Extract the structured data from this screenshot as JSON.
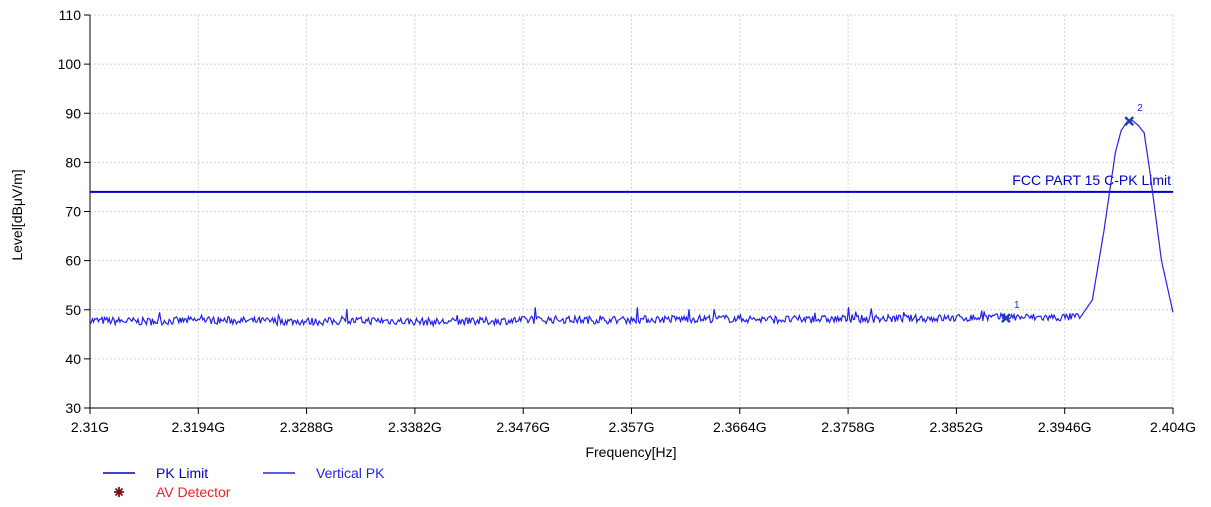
{
  "chart_data": {
    "type": "line",
    "xlabel": "Frequency[Hz]",
    "ylabel": "Level[dBμV/m]",
    "xlim": [
      2.31,
      2.404
    ],
    "ylim": [
      30,
      110
    ],
    "x_unit": "GHz",
    "y_ticks": [
      30,
      40,
      50,
      60,
      70,
      80,
      90,
      100,
      110
    ],
    "x_ticks": [
      2.31,
      2.3194,
      2.3288,
      2.3382,
      2.3476,
      2.357,
      2.3664,
      2.3758,
      2.3852,
      2.3946,
      2.404
    ],
    "x_tick_labels": [
      "2.31G",
      "2.3194G",
      "2.3288G",
      "2.3382G",
      "2.3476G",
      "2.357G",
      "2.3664G",
      "2.3758G",
      "2.3852G",
      "2.3946G",
      "2.404G"
    ],
    "grid": true,
    "limit_line": {
      "name": "FCC PART 15 C-PK Limit",
      "value": 74,
      "color": "#0000cc"
    },
    "series": [
      {
        "name": "Vertical PK",
        "color": "#2222ee",
        "x": [
          2.31,
          2.315,
          2.32,
          2.325,
          2.33,
          2.335,
          2.34,
          2.345,
          2.35,
          2.355,
          2.36,
          2.365,
          2.37,
          2.375,
          2.38,
          2.385,
          2.39,
          2.394,
          2.396,
          2.397,
          2.398,
          2.399,
          2.3995,
          2.4,
          2.4005,
          2.401,
          2.4015,
          2.402,
          2.403,
          2.404
        ],
        "y": [
          47.8,
          47.6,
          47.9,
          47.7,
          47.6,
          47.8,
          47.5,
          47.7,
          48.0,
          47.9,
          48.1,
          48.2,
          48.0,
          48.1,
          48.2,
          48.3,
          48.5,
          48.4,
          48.6,
          52.0,
          66.0,
          82.0,
          86.5,
          88.2,
          88.5,
          87.5,
          86.0,
          78.0,
          60.0,
          49.5
        ]
      }
    ],
    "markers": [
      {
        "label": "1",
        "x": 2.3895,
        "y": 48.3
      },
      {
        "label": "2",
        "x": 2.4002,
        "y": 88.4
      }
    ],
    "legend": {
      "placement": "bottom-left",
      "items": [
        {
          "label": "PK Limit",
          "color": "#0000cc",
          "symbol": "line"
        },
        {
          "label": "Vertical PK",
          "color": "#2222ee",
          "symbol": "line"
        },
        {
          "label": "AV Detector",
          "color": "#ee2222",
          "symbol": "star",
          "symbol_color": "#7a1414"
        }
      ]
    }
  }
}
